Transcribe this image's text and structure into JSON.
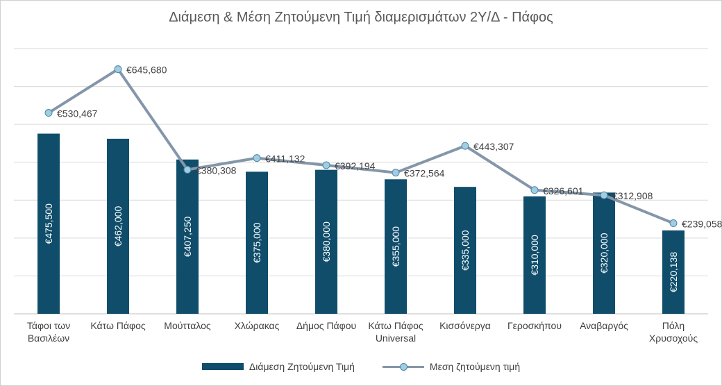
{
  "chart_data": {
    "type": "bar",
    "title": "Διάμεση & Μέση Ζητούμενη  Τιμή διαμερισμάτων 2Υ/Δ - Πάφος",
    "categories": [
      [
        "Τάφοι των",
        "Βασιλέων"
      ],
      [
        "Κάτω Πάφος"
      ],
      [
        "Μούτταλος"
      ],
      [
        "Χλώρακας"
      ],
      [
        "Δήμος Πάφου"
      ],
      [
        "Κάτω Πάφος",
        "Universal"
      ],
      [
        "Κισσόνεργα"
      ],
      [
        "Γεροσκήπου"
      ],
      [
        "Αναβαργός"
      ],
      [
        "Πόλη",
        "Χρυσοχούς"
      ]
    ],
    "series": [
      {
        "name": "Διάμεση Ζητούμενη Τιμή",
        "type": "bar",
        "color": "#0f4d6b",
        "values": [
          475500,
          462000,
          407250,
          375000,
          380000,
          355000,
          335000,
          310000,
          320000,
          220138
        ],
        "labels": [
          "€475,500",
          "€462,000",
          "€407,250",
          "€375,000",
          "€380,000",
          "€355,000",
          "€335,000",
          "€310,000",
          "€320,000",
          "€220,138"
        ]
      },
      {
        "name": "Μεση ζητούμενη τιμή",
        "type": "line",
        "color": "#8496a9",
        "marker_color": "#9fcde2",
        "values": [
          530467,
          645680,
          380308,
          411132,
          392194,
          372564,
          443307,
          326601,
          312908,
          239058
        ],
        "labels": [
          "€530,467",
          "€645,680",
          "€380,308",
          "€411,132",
          "€392,194",
          "€372,564",
          "€443,307",
          "€326,601",
          "€312,908",
          "€239,058"
        ]
      }
    ],
    "ylim": [
      0,
      700000
    ],
    "grid": true,
    "legend_position": "bottom"
  }
}
